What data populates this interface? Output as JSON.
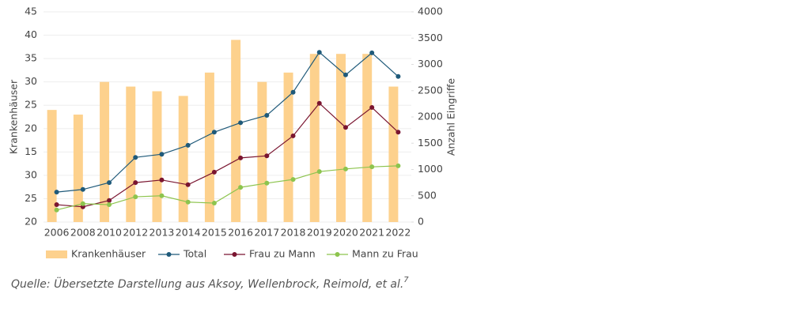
{
  "chart_data": {
    "type": "bar-line",
    "categories": [
      "2006",
      "2008",
      "2010",
      "2012",
      "2013",
      "2014",
      "2015",
      "2016",
      "2017",
      "2018",
      "2019",
      "2020",
      "2021",
      "2022"
    ],
    "ylabel": "Krankenhäuser",
    "y2label": "Anzahl Eingriffe",
    "ylim": [
      0,
      45
    ],
    "yticks": [
      {
        "value": 0,
        "label": "20"
      },
      {
        "value": 5,
        "label": "25"
      },
      {
        "value": 10,
        "label": "30"
      },
      15,
      20,
      25,
      30,
      35,
      40,
      45
    ],
    "y2lim": [
      0,
      4000
    ],
    "y2ticks": [
      0,
      500,
      1000,
      1500,
      2000,
      2500,
      3000,
      3500,
      4000
    ],
    "grid": true,
    "series": [
      {
        "name": "Krankenhäuser",
        "type": "bar",
        "color": "#fdd18d",
        "values": [
          24,
          23,
          30,
          29,
          28,
          27,
          32,
          39,
          30,
          32,
          36,
          36,
          36,
          29
        ]
      },
      {
        "name": "Total",
        "type": "line",
        "axis": "y2",
        "color": "#1f5a7a",
        "values": [
          570,
          620,
          750,
          1230,
          1290,
          1460,
          1710,
          1890,
          2030,
          2470,
          3230,
          2800,
          3220,
          2770
        ]
      },
      {
        "name": "Frau zu Mann",
        "type": "line",
        "axis": "y2",
        "color": "#7a1530",
        "values": [
          330,
          290,
          410,
          750,
          800,
          710,
          950,
          1220,
          1260,
          1640,
          2260,
          1800,
          2180,
          1710
        ]
      },
      {
        "name": "Mann zu Frau",
        "type": "line",
        "axis": "y2",
        "color": "#8dc44e",
        "values": [
          230,
          350,
          330,
          480,
          500,
          380,
          360,
          660,
          740,
          810,
          960,
          1010,
          1050,
          1070
        ]
      }
    ],
    "legend": "bottom",
    "source": "Quelle: Übersetzte Darstellung aus Aksoy, Wellenbrock, Reimold, et al.",
    "source_ref": "7"
  }
}
